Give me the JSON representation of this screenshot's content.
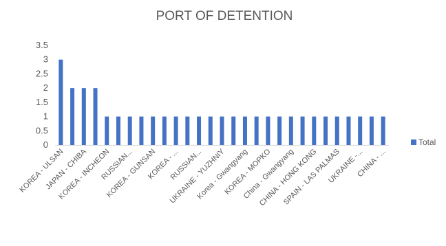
{
  "chart_data": {
    "type": "bar",
    "title": "PORT OF DETENTION",
    "xlabel": "",
    "ylabel": "",
    "ylim": [
      0,
      3.5
    ],
    "yticks": [
      "0",
      "0.5",
      "1",
      "1.5",
      "2",
      "2.5",
      "3",
      "3.5"
    ],
    "grid": false,
    "legend_position": "right",
    "colors": {
      "bar": "#4472C4",
      "axis": "#D9D9D9",
      "text": "#595959"
    },
    "categories": [
      "KOREA - ULSAN",
      "",
      "JAPAN - CHIBA",
      "",
      "KOREA - INCHEON",
      "",
      "RUSSIAN...",
      "",
      "KOREA - GUNSAN",
      "",
      "KOREA - ...",
      "",
      "RUSSIAN...",
      "",
      "UKRAINE - YUZHNIY",
      "",
      "Korea - Gwangyang",
      "",
      "KOREA - MOPKO",
      "",
      "China - Gwangyang",
      "",
      "CHINA - HONG KONG",
      "",
      "SPAIN - LAS PALMAS",
      "",
      "UKRAINE -...",
      "",
      "CHINA - ..."
    ],
    "series": [
      {
        "name": "Total",
        "values": [
          3,
          2,
          2,
          2,
          1,
          1,
          1,
          1,
          1,
          1,
          1,
          1,
          1,
          1,
          1,
          1,
          1,
          1,
          1,
          1,
          1,
          1,
          1,
          1,
          1,
          1,
          1,
          1,
          1
        ]
      }
    ]
  }
}
